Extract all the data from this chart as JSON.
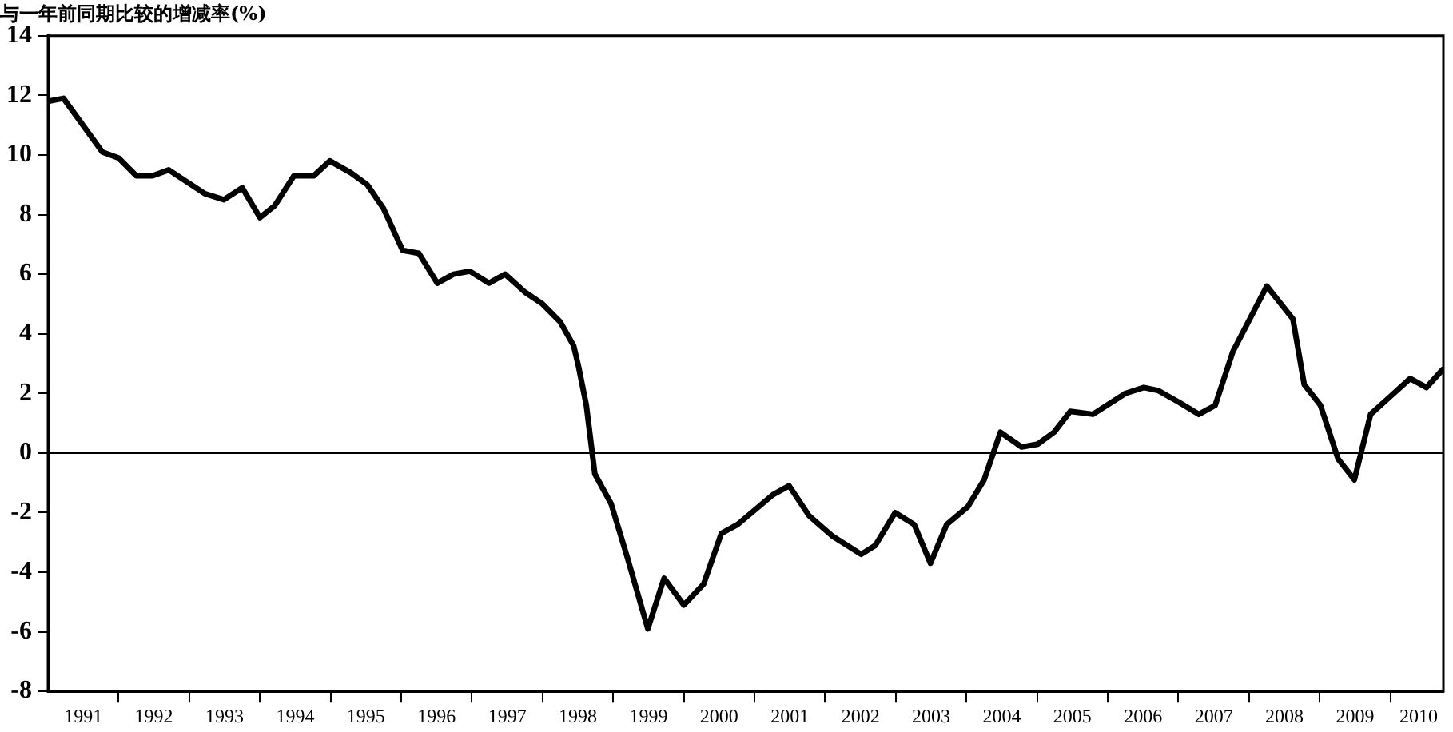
{
  "chart_data": {
    "type": "line",
    "title": "与一年前同期比较的增减率(%)",
    "x": [
      1991.0,
      1991.22,
      1991.77,
      1992.0,
      1992.25,
      1992.48,
      1992.71,
      1993.22,
      1993.49,
      1993.75,
      1994.0,
      1994.21,
      1994.48,
      1994.76,
      1994.99,
      1995.29,
      1995.52,
      1995.75,
      1996.02,
      1996.25,
      1996.51,
      1996.74,
      1996.97,
      1997.24,
      1997.47,
      1997.75,
      1998.0,
      1998.25,
      1998.44,
      1998.51,
      1998.62,
      1998.74,
      1998.97,
      1999.2,
      1999.49,
      1999.72,
      2000.0,
      2000.28,
      2000.53,
      2000.76,
      2001.26,
      2001.49,
      2001.77,
      2002.11,
      2002.51,
      2002.71,
      2002.99,
      2003.26,
      2003.49,
      2003.72,
      2004.02,
      2004.25,
      2004.48,
      2004.78,
      2005.01,
      2005.24,
      2005.47,
      2005.79,
      2006.25,
      2006.51,
      2006.71,
      2007.01,
      2007.29,
      2007.52,
      2007.77,
      2008.25,
      2008.62,
      2008.78,
      2009.01,
      2009.26,
      2009.49,
      2009.72,
      2010.0,
      2010.28,
      2010.51,
      2010.74
    ],
    "series": [
      {
        "color": "#000000",
        "values": [
          11.8,
          11.9,
          10.1,
          9.9,
          9.3,
          9.3,
          9.5,
          8.7,
          8.5,
          8.9,
          7.9,
          8.3,
          9.3,
          9.3,
          9.8,
          9.4,
          9.0,
          8.2,
          6.8,
          6.7,
          5.7,
          6.0,
          6.1,
          5.7,
          6.0,
          5.4,
          5.0,
          4.4,
          3.6,
          2.9,
          1.6,
          -0.7,
          -1.7,
          -3.5,
          -5.9,
          -4.2,
          -5.1,
          -4.4,
          -2.7,
          -2.4,
          -1.4,
          -1.1,
          -2.1,
          -2.8,
          -3.4,
          -3.1,
          -2.0,
          -2.4,
          -3.7,
          -2.4,
          -1.8,
          -0.9,
          0.7,
          0.2,
          0.3,
          0.7,
          1.4,
          1.3,
          2.0,
          2.2,
          2.1,
          1.7,
          1.3,
          1.6,
          3.4,
          5.6,
          4.5,
          2.3,
          1.6,
          -0.2,
          -0.9,
          1.3,
          1.9,
          2.5,
          2.2,
          2.8
        ]
      }
    ],
    "xlim": [
      1991,
      2010.75
    ],
    "xticks": [
      {
        "value": 1991.5,
        "label": "1991"
      },
      {
        "value": 1992,
        "label": null
      },
      {
        "value": 1992.5,
        "label": "1992"
      },
      {
        "value": 1993,
        "label": null
      },
      {
        "value": 1993.5,
        "label": "1993"
      },
      {
        "value": 1994,
        "label": null
      },
      {
        "value": 1994.5,
        "label": "1994"
      },
      {
        "value": 1995,
        "label": null
      },
      {
        "value": 1995.5,
        "label": "1995"
      },
      {
        "value": 1996,
        "label": null
      },
      {
        "value": 1996.5,
        "label": "1996"
      },
      {
        "value": 1997,
        "label": null
      },
      {
        "value": 1997.5,
        "label": "1997"
      },
      {
        "value": 1998,
        "label": null
      },
      {
        "value": 1998.5,
        "label": "1998"
      },
      {
        "value": 1999,
        "label": null
      },
      {
        "value": 1999.5,
        "label": "1999"
      },
      {
        "value": 2000,
        "label": null
      },
      {
        "value": 2000.5,
        "label": "2000"
      },
      {
        "value": 2001,
        "label": null
      },
      {
        "value": 2001.5,
        "label": "2001"
      },
      {
        "value": 2002,
        "label": null
      },
      {
        "value": 2002.5,
        "label": "2002"
      },
      {
        "value": 2003,
        "label": null
      },
      {
        "value": 2003.5,
        "label": "2003"
      },
      {
        "value": 2004,
        "label": null
      },
      {
        "value": 2004.5,
        "label": "2004"
      },
      {
        "value": 2005,
        "label": null
      },
      {
        "value": 2005.5,
        "label": "2005"
      },
      {
        "value": 2006,
        "label": null
      },
      {
        "value": 2006.5,
        "label": "2006"
      },
      {
        "value": 2007,
        "label": null
      },
      {
        "value": 2007.5,
        "label": "2007"
      },
      {
        "value": 2008,
        "label": null
      },
      {
        "value": 2008.5,
        "label": "2008"
      },
      {
        "value": 2009,
        "label": null
      },
      {
        "value": 2009.5,
        "label": "2009"
      },
      {
        "value": 2010,
        "label": null
      },
      {
        "value": 2010.4,
        "label": "2010"
      }
    ],
    "ylim": [
      -8,
      14
    ],
    "yticks": [
      -8,
      -6,
      -4,
      -2,
      0,
      2,
      4,
      6,
      8,
      10,
      12,
      14
    ],
    "ref_lines": [
      {
        "axis": "y",
        "value": 0,
        "color": "#000000"
      }
    ],
    "grid": false,
    "legend": false,
    "marker": "none",
    "line_style": "solid"
  }
}
